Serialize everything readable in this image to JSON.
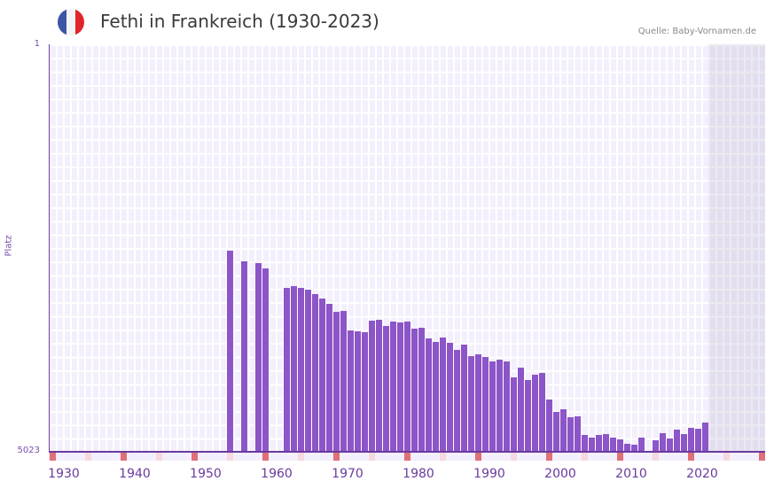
{
  "header": {
    "title": "Fethi in Frankreich (1930-2023)",
    "source": "Quelle: Baby-Vornamen.de",
    "flag_colors": [
      "#3b56a6",
      "#f4f4f4",
      "#e0242c"
    ]
  },
  "axes": {
    "ylabel": "Platz",
    "ytick_top": "1",
    "ytick_bottom": "5023",
    "xticks": [
      "1930",
      "1940",
      "1950",
      "1960",
      "1970",
      "1980",
      "1990",
      "2000",
      "2010",
      "2020"
    ]
  },
  "colors": {
    "bar": "#8c55c8",
    "axis": "#6a3a9e",
    "decade_marker": "#e07078",
    "half_decade_marker": "#f5d8e0",
    "grid_bg": "#f3effc"
  },
  "chart_data": {
    "type": "bar",
    "title": "Fethi in Frankreich (1930-2023)",
    "xlabel": "",
    "ylabel": "Platz",
    "ylim": [
      5023,
      1
    ],
    "y_inverted": true,
    "grid": true,
    "x": [
      1954,
      1956,
      1958,
      1959,
      1962,
      1963,
      1964,
      1965,
      1966,
      1967,
      1968,
      1969,
      1970,
      1971,
      1972,
      1973,
      1974,
      1975,
      1976,
      1977,
      1978,
      1979,
      1980,
      1981,
      1982,
      1983,
      1984,
      1985,
      1986,
      1987,
      1988,
      1989,
      1990,
      1991,
      1992,
      1993,
      1994,
      1995,
      1996,
      1997,
      1998,
      1999,
      2000,
      2001,
      2002,
      2003,
      2004,
      2005,
      2006,
      2007,
      2008,
      2009,
      2010,
      2011,
      2012,
      2013,
      2014,
      2015,
      2016,
      2017,
      2018,
      2019,
      2020,
      2021
    ],
    "values": [
      2545,
      2676,
      2698,
      2763,
      3003,
      2981,
      3003,
      3025,
      3080,
      3134,
      3200,
      3298,
      3287,
      3527,
      3538,
      3549,
      3407,
      3396,
      3473,
      3418,
      3429,
      3418,
      3505,
      3494,
      3626,
      3669,
      3615,
      3680,
      3768,
      3702,
      3844,
      3822,
      3855,
      3910,
      3888,
      3910,
      4106,
      3986,
      4139,
      4073,
      4051,
      4379,
      4532,
      4499,
      4597,
      4586,
      4816,
      4848,
      4816,
      4805,
      4848,
      4870,
      4925,
      4936,
      4848,
      5012,
      4881,
      4794,
      4859,
      4750,
      4805,
      4728,
      4739,
      4663
    ],
    "xrange": [
      1929,
      2029
    ],
    "future_shaded_from": 2022
  }
}
